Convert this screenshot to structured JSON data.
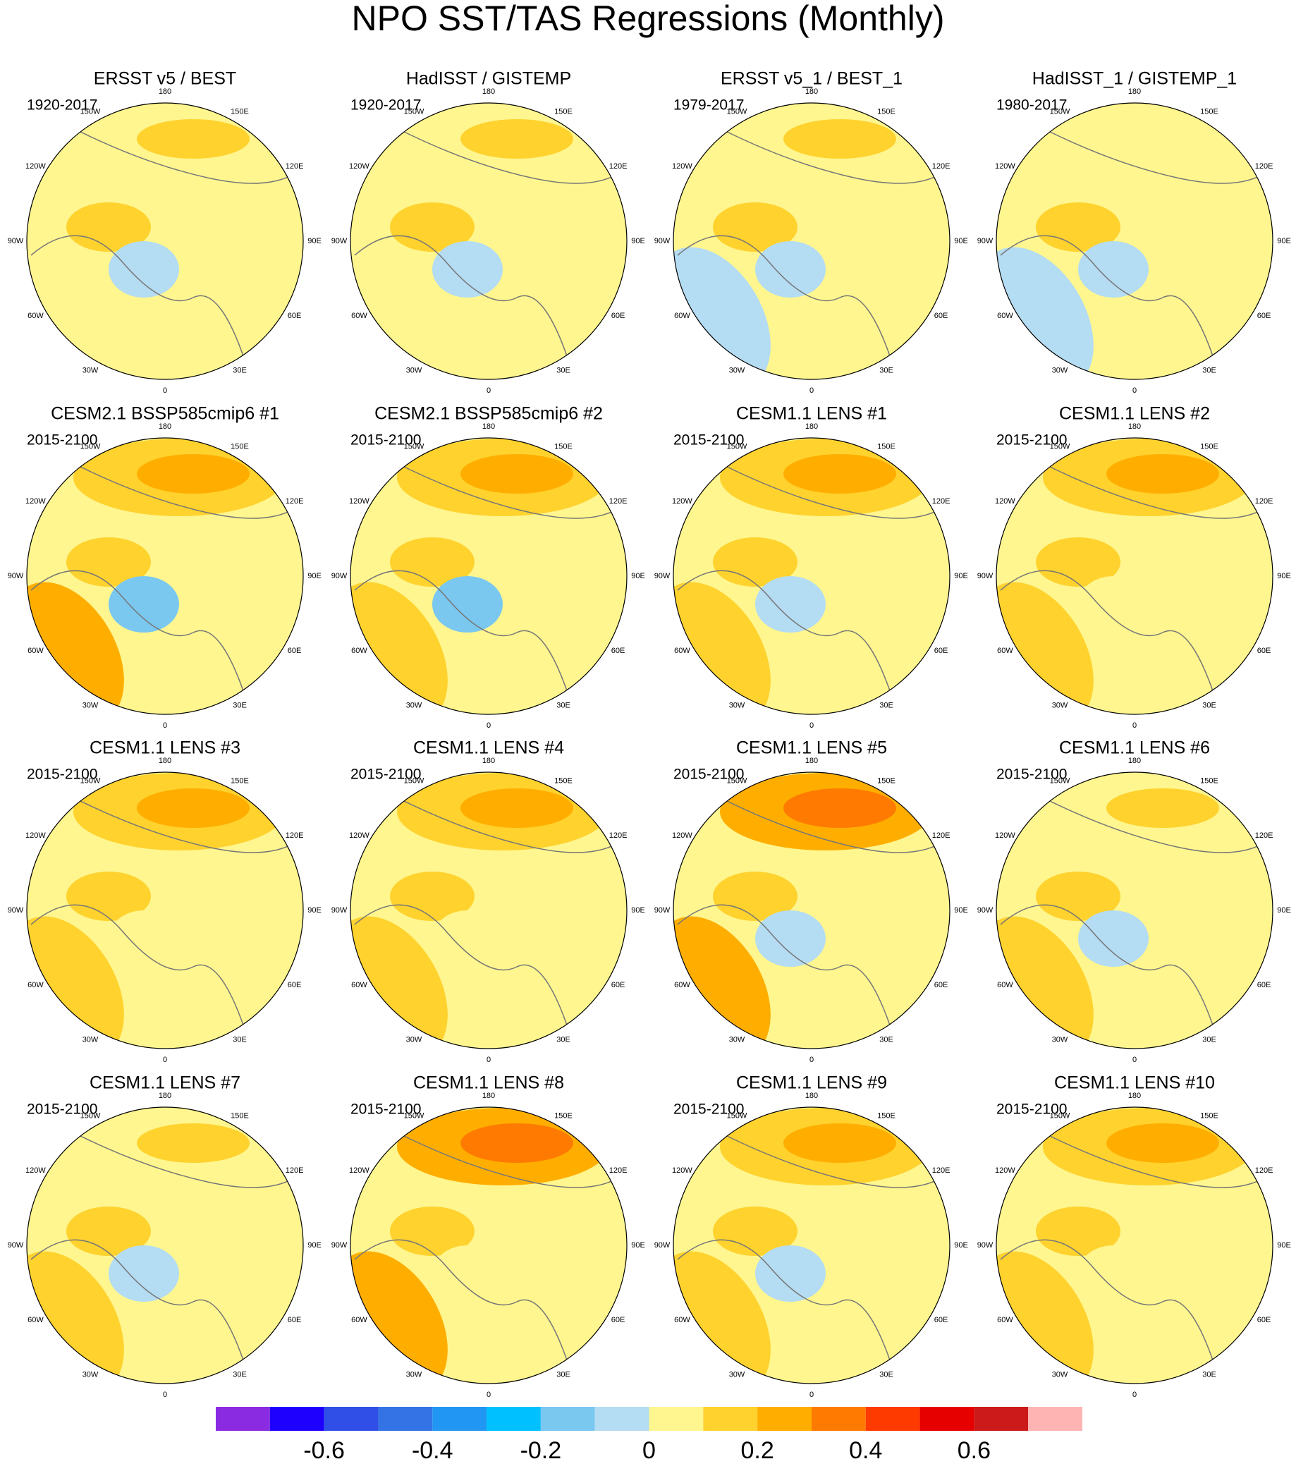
{
  "title": "NPO SST/TAS Regressions (Monthly)",
  "panels": [
    {
      "title": "ERSST v5 / BEST",
      "period": "1920-2017"
    },
    {
      "title": "HadISST / GISTEMP",
      "period": "1920-2017"
    },
    {
      "title": "ERSST v5_1 / BEST_1",
      "period": "1979-2017"
    },
    {
      "title": "HadISST_1 / GISTEMP_1",
      "period": "1980-2017"
    },
    {
      "title": "CESM2.1 BSSP585cmip6 #1",
      "period": "2015-2100"
    },
    {
      "title": "CESM2.1 BSSP585cmip6 #2",
      "period": "2015-2100"
    },
    {
      "title": "CESM1.1 LENS #1",
      "period": "2015-2100"
    },
    {
      "title": "CESM1.1 LENS #2",
      "period": "2015-2100"
    },
    {
      "title": "CESM1.1 LENS #3",
      "period": "2015-2100"
    },
    {
      "title": "CESM1.1 LENS #4",
      "period": "2015-2100"
    },
    {
      "title": "CESM1.1 LENS #5",
      "period": "2015-2100"
    },
    {
      "title": "CESM1.1 LENS #6",
      "period": "2015-2100"
    },
    {
      "title": "CESM1.1 LENS #7",
      "period": "2015-2100"
    },
    {
      "title": "CESM1.1 LENS #8",
      "period": "2015-2100"
    },
    {
      "title": "CESM1.1 LENS #9",
      "period": "2015-2100"
    },
    {
      "title": "CESM1.1 LENS #10",
      "period": "2015-2100"
    }
  ],
  "lon_labels": [
    "180",
    "150E",
    "120E",
    "90E",
    "60E",
    "30E",
    "0",
    "30W",
    "60W",
    "90W",
    "120W",
    "150W"
  ],
  "colorbar": {
    "colors": [
      "#8a2be2",
      "#1e00ff",
      "#2f4fe6",
      "#3473e6",
      "#2196f3",
      "#00c0ff",
      "#7ac8f0",
      "#b4dcf2",
      "#fff68f",
      "#ffd22e",
      "#ffae00",
      "#ff7a00",
      "#ff3a00",
      "#e60000",
      "#cc1a1a",
      "#ffb4b4"
    ],
    "range": [
      -0.8,
      0.8
    ],
    "ticks": [
      -0.6,
      -0.4,
      -0.2,
      0,
      0.2,
      0.4,
      0.6
    ]
  }
}
